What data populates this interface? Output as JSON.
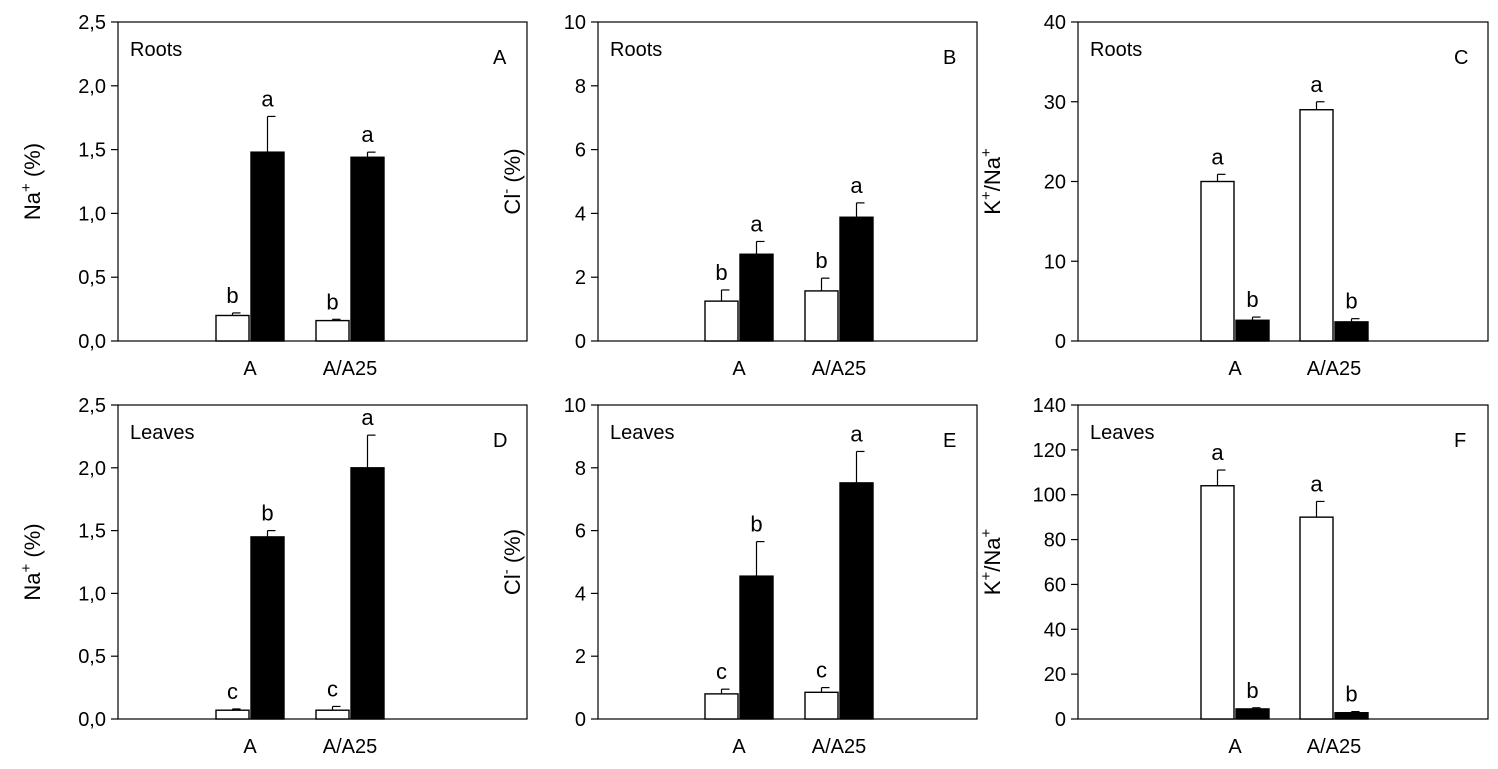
{
  "chart_data": [
    {
      "panel": "A",
      "type": "bar",
      "title": "Roots",
      "ylabel": "Na+ (%)",
      "ylabel_base": "Na",
      "ylabel_sup": "+",
      "ylabel_unit": " (%)",
      "ylim": [
        0,
        2.5
      ],
      "yticks": [
        "0,0",
        "0,5",
        "1,0",
        "1,5",
        "2,0",
        "2,5"
      ],
      "categories": [
        "A",
        "A/A25"
      ],
      "series": [
        {
          "color": "#ffffff",
          "values": [
            0.2,
            0.16
          ],
          "errors": [
            0.02,
            0.01
          ],
          "letters": [
            "b",
            "b"
          ]
        },
        {
          "color": "#000000",
          "values": [
            1.48,
            1.44
          ],
          "errors": [
            0.28,
            0.04
          ],
          "letters": [
            "a",
            "a"
          ]
        }
      ]
    },
    {
      "panel": "B",
      "type": "bar",
      "title": "Roots",
      "ylabel": "Cl- (%)",
      "ylabel_base": "Cl",
      "ylabel_sup": "-",
      "ylabel_unit": " (%)",
      "ylim": [
        0,
        10
      ],
      "yticks": [
        "0",
        "2",
        "4",
        "6",
        "8",
        "10"
      ],
      "categories": [
        "A",
        "A/A25"
      ],
      "series": [
        {
          "color": "#ffffff",
          "values": [
            1.25,
            1.57
          ],
          "errors": [
            0.35,
            0.4
          ],
          "letters": [
            "b",
            "b"
          ]
        },
        {
          "color": "#000000",
          "values": [
            2.72,
            3.88
          ],
          "errors": [
            0.4,
            0.45
          ],
          "letters": [
            "a",
            "a"
          ]
        }
      ]
    },
    {
      "panel": "C",
      "type": "bar",
      "title": "Roots",
      "ylabel": "K+/Na+",
      "ylabel_base": "K",
      "ylabel_sup": "+",
      "ylabel_mid": "/Na",
      "ylabel_sup2": "+",
      "ylim": [
        0,
        40
      ],
      "yticks": [
        "0",
        "10",
        "20",
        "30",
        "40"
      ],
      "categories": [
        "A",
        "A/A25"
      ],
      "series": [
        {
          "color": "#ffffff",
          "values": [
            20,
            29
          ],
          "errors": [
            0.9,
            1.0
          ],
          "letters": [
            "a",
            "a"
          ]
        },
        {
          "color": "#000000",
          "values": [
            2.6,
            2.4
          ],
          "errors": [
            0.4,
            0.4
          ],
          "letters": [
            "b",
            "b"
          ]
        }
      ]
    },
    {
      "panel": "D",
      "type": "bar",
      "title": "Leaves",
      "ylabel": "Na+ (%)",
      "ylabel_base": "Na",
      "ylabel_sup": "+",
      "ylabel_unit": " (%)",
      "ylim": [
        0,
        2.5
      ],
      "yticks": [
        "0,0",
        "0,5",
        "1,0",
        "1,5",
        "2,0",
        "2,5"
      ],
      "categories": [
        "A",
        "A/A25"
      ],
      "series": [
        {
          "color": "#ffffff",
          "values": [
            0.07,
            0.07
          ],
          "errors": [
            0.01,
            0.03
          ],
          "letters": [
            "c",
            "c"
          ]
        },
        {
          "color": "#000000",
          "values": [
            1.45,
            2.0
          ],
          "errors": [
            0.05,
            0.26
          ],
          "letters": [
            "b",
            "a"
          ]
        }
      ]
    },
    {
      "panel": "E",
      "type": "bar",
      "title": "Leaves",
      "ylabel": "Cl- (%)",
      "ylabel_base": "Cl",
      "ylabel_sup": "-",
      "ylabel_unit": " (%)",
      "ylim": [
        0,
        10
      ],
      "yticks": [
        "0",
        "2",
        "4",
        "6",
        "8",
        "10"
      ],
      "categories": [
        "A",
        "A/A25"
      ],
      "series": [
        {
          "color": "#ffffff",
          "values": [
            0.8,
            0.85
          ],
          "errors": [
            0.15,
            0.15
          ],
          "letters": [
            "c",
            "c"
          ]
        },
        {
          "color": "#000000",
          "values": [
            4.55,
            7.52
          ],
          "errors": [
            1.1,
            1.0
          ],
          "letters": [
            "b",
            "a"
          ]
        }
      ]
    },
    {
      "panel": "F",
      "type": "bar",
      "title": "Leaves",
      "ylabel": "K+/Na+",
      "ylabel_base": "K",
      "ylabel_sup": "+",
      "ylabel_mid": "/Na",
      "ylabel_sup2": "+",
      "ylim": [
        0,
        140
      ],
      "yticks": [
        "0",
        "20",
        "40",
        "60",
        "80",
        "100",
        "120",
        "140"
      ],
      "categories": [
        "A",
        "A/A25"
      ],
      "series": [
        {
          "color": "#ffffff",
          "values": [
            104,
            90
          ],
          "errors": [
            7,
            7
          ],
          "letters": [
            "a",
            "a"
          ]
        },
        {
          "color": "#000000",
          "values": [
            4.5,
            2.8
          ],
          "errors": [
            0.5,
            0.5
          ],
          "letters": [
            "b",
            "b"
          ]
        }
      ]
    }
  ]
}
